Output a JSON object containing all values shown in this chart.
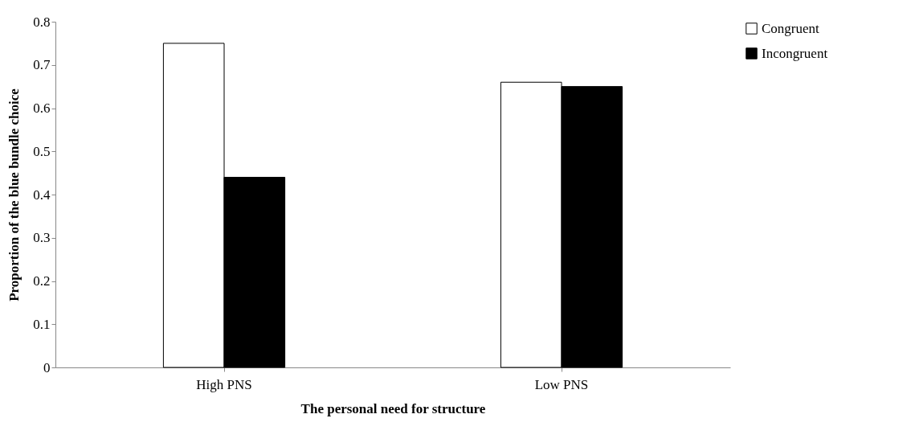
{
  "chart_data": {
    "type": "bar",
    "xlabel": "The personal need for structure",
    "ylabel": "Proportion of the blue bundle choice",
    "categories": [
      "High PNS",
      "Low PNS"
    ],
    "series": [
      {
        "name": "Congruent",
        "color": "#ffffff",
        "values": [
          0.75,
          0.66
        ]
      },
      {
        "name": "Incongruent",
        "color": "#000000",
        "values": [
          0.44,
          0.65
        ]
      }
    ],
    "ylim": [
      0,
      0.8
    ],
    "yticks": [
      0,
      0.1,
      0.2,
      0.3,
      0.4,
      0.5,
      0.6,
      0.7,
      0.8
    ],
    "grid": false,
    "legend": "right"
  }
}
